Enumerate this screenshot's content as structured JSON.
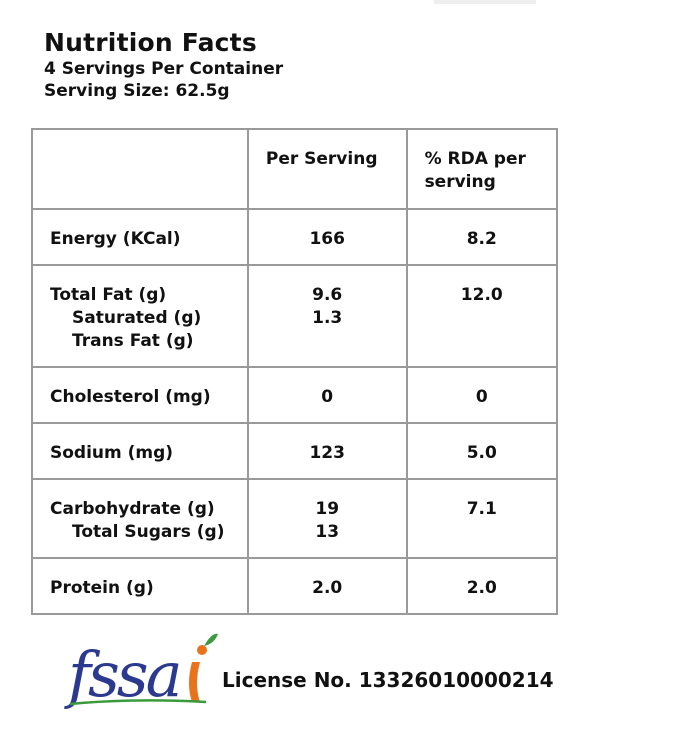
{
  "header": {
    "title": "Nutrition Facts",
    "servings_per_container": "4 Servings Per Container",
    "serving_size": "Serving Size: 62.5g"
  },
  "table": {
    "columns": [
      "",
      "Per Serving",
      "% RDA per serving"
    ],
    "rows": [
      {
        "name": "Energy (KCal)",
        "per_serving": "166",
        "rda": "8.2"
      },
      {
        "name": "Total Fat (g)",
        "per_serving": "9.6",
        "rda": "12.0",
        "sub": [
          {
            "name": "Saturated (g)",
            "per_serving": "1.3"
          },
          {
            "name": "Trans Fat (g)",
            "per_serving": ""
          }
        ]
      },
      {
        "name": "Cholesterol (mg)",
        "per_serving": "0",
        "rda": "0"
      },
      {
        "name": "Sodium (mg)",
        "per_serving": "123",
        "rda": "5.0"
      },
      {
        "name": "Carbohydrate (g)",
        "per_serving": "19",
        "rda": "7.1",
        "sub": [
          {
            "name": "Total Sugars (g)",
            "per_serving": "13"
          }
        ]
      },
      {
        "name": "Protein (g)",
        "per_serving": "2.0",
        "rda": "2.0"
      }
    ]
  },
  "footer": {
    "logo_text": "fssai",
    "license": "License No. 13326010000214"
  },
  "colors": {
    "logo_blue": "#2b3a8f",
    "logo_orange": "#e8731c",
    "logo_green": "#3a9a3c",
    "table_border": "#9a9a9a"
  }
}
